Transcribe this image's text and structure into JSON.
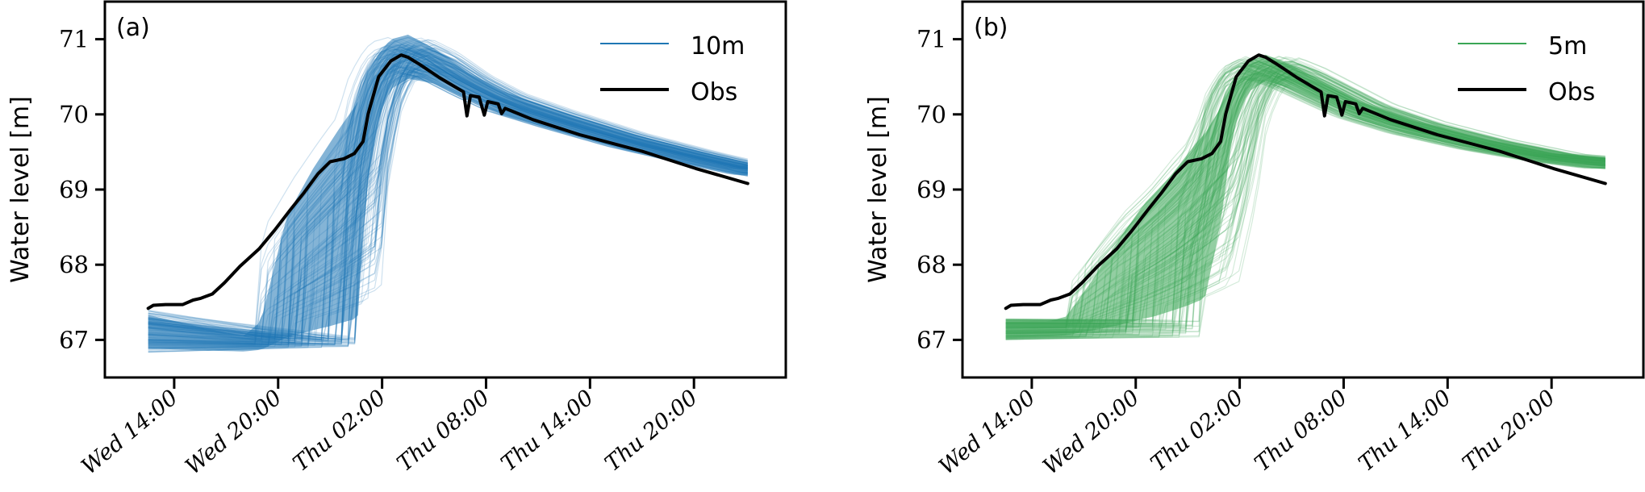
{
  "chart_data": [
    {
      "type": "line",
      "panel_label": "(a)",
      "ylabel": "Water level [m]",
      "xlabel": "",
      "ylim": [
        66.5,
        71.5
      ],
      "xlim_hours_from_wed_00": [
        10.0,
        49.3
      ],
      "yticks": [
        67,
        68,
        69,
        70,
        71
      ],
      "ytick_labels": [
        "67",
        "68",
        "69",
        "70",
        "71"
      ],
      "xticks_hours_from_wed_00": [
        14,
        20,
        26,
        32,
        38,
        44
      ],
      "xtick_labels": [
        "Wed 14:00",
        "Wed 20:00",
        "Thu 02:00",
        "Thu 08:00",
        "Thu 14:00",
        "Thu 20:00"
      ],
      "grid": false,
      "legend_position": "top-right",
      "legend": [
        {
          "name": "10m",
          "color": "#1f77b4"
        },
        {
          "name": "Obs",
          "color": "#000000"
        }
      ],
      "ensemble": {
        "name": "10m",
        "color": "#1f77b4",
        "member_count_approx": 1000,
        "description": "ensemble of simulated water level trajectories",
        "start_hour": 12.5,
        "end_hour": 47.1,
        "initial_range": [
          66.83,
          67.4
        ],
        "low_phase_end_range_hours": [
          18.7,
          24.8
        ],
        "low_phase_level_at_rise": [
          66.9,
          67.05
        ],
        "peak_range": [
          70.35,
          71.15
        ],
        "peak_hour_approx": 27.0,
        "end_range": [
          69.15,
          69.4
        ],
        "envelope_upper": {
          "x": [
            12.5,
            15,
            18,
            19,
            20.5,
            22,
            23.5,
            25,
            26.5,
            27.5,
            29,
            31,
            33,
            36,
            40,
            44,
            47.1
          ],
          "y": [
            67.4,
            67.25,
            67.08,
            67.3,
            68.9,
            69.6,
            70.2,
            70.75,
            71.1,
            71.15,
            70.95,
            70.6,
            70.35,
            70.1,
            69.8,
            69.55,
            69.38
          ]
        },
        "envelope_lower": {
          "x": [
            12.5,
            16,
            20,
            23,
            24.6,
            25,
            25.8,
            26.5,
            27.5,
            29,
            31,
            33,
            36,
            40,
            44,
            47.1
          ],
          "y": [
            66.83,
            66.82,
            66.82,
            66.87,
            66.92,
            68.6,
            69.85,
            70.25,
            70.4,
            70.35,
            70.15,
            69.95,
            69.75,
            69.5,
            69.3,
            69.15
          ]
        }
      },
      "series": [
        {
          "name": "Obs",
          "color": "#000000",
          "x": [
            12.5,
            12.8,
            13.5,
            14.5,
            15.1,
            15.5,
            16.2,
            16.9,
            17.8,
            18.9,
            19.8,
            20.7,
            21.5,
            22.3,
            23.0,
            23.8,
            24.4,
            24.9,
            25.2,
            25.8,
            26.5,
            27.1,
            27.5,
            28.2,
            29.3,
            30.4,
            30.7,
            30.9,
            31.1,
            31.6,
            31.9,
            32.1,
            32.7,
            32.9,
            33.1,
            34.7,
            37.4,
            41.0,
            44.1,
            47.1
          ],
          "y": [
            67.42,
            67.46,
            67.47,
            67.47,
            67.53,
            67.55,
            67.61,
            67.76,
            67.98,
            68.21,
            68.46,
            68.73,
            68.96,
            69.21,
            69.37,
            69.41,
            69.48,
            69.64,
            70.01,
            70.5,
            70.71,
            70.79,
            70.76,
            70.66,
            70.49,
            70.34,
            70.3,
            69.98,
            70.25,
            70.23,
            69.99,
            70.17,
            70.14,
            70.01,
            70.08,
            69.93,
            69.73,
            69.51,
            69.28,
            69.08
          ]
        }
      ]
    },
    {
      "type": "line",
      "panel_label": "(b)",
      "ylabel": "Water level [m]",
      "xlabel": "",
      "ylim": [
        66.5,
        71.5
      ],
      "xlim_hours_from_wed_00": [
        10.0,
        49.3
      ],
      "yticks": [
        67,
        68,
        69,
        70,
        71
      ],
      "ytick_labels": [
        "67",
        "68",
        "69",
        "70",
        "71"
      ],
      "xticks_hours_from_wed_00": [
        14,
        20,
        26,
        32,
        38,
        44
      ],
      "xtick_labels": [
        "Wed 14:00",
        "Wed 20:00",
        "Thu 02:00",
        "Thu 08:00",
        "Thu 14:00",
        "Thu 20:00"
      ],
      "grid": false,
      "legend_position": "top-right",
      "legend": [
        {
          "name": "5m",
          "color": "#3aa655"
        },
        {
          "name": "Obs",
          "color": "#000000"
        }
      ],
      "ensemble": {
        "name": "5m",
        "color": "#3aa655",
        "member_count_approx": 1000,
        "description": "ensemble of simulated water level trajectories",
        "start_hour": 12.5,
        "end_hour": 47.1,
        "initial_range": [
          67.0,
          67.28
        ],
        "low_phase_end_range_hours": [
          16.0,
          24.0
        ],
        "low_phase_level_at_rise": [
          67.03,
          67.27
        ],
        "peak_range": [
          70.4,
          70.85
        ],
        "peak_hour_approx": 27.0,
        "end_range": [
          69.25,
          69.45
        ],
        "envelope_upper": {
          "x": [
            12.5,
            15,
            16,
            17.5,
            19,
            20.5,
            22,
            23.5,
            25,
            26.5,
            27.5,
            29,
            31,
            33,
            36,
            40,
            44,
            47.1
          ],
          "y": [
            67.28,
            67.28,
            67.35,
            67.9,
            68.5,
            69.05,
            69.45,
            69.95,
            70.35,
            70.75,
            70.85,
            70.7,
            70.45,
            70.2,
            69.95,
            69.7,
            69.5,
            69.45
          ]
        },
        "envelope_lower": {
          "x": [
            12.5,
            16,
            19,
            21,
            23,
            24,
            25,
            25.6,
            26.5,
            27.5,
            29,
            31,
            33,
            36,
            40,
            44,
            47.1
          ],
          "y": [
            67.0,
            67.03,
            67.05,
            67.1,
            67.2,
            67.27,
            68.5,
            69.7,
            70.25,
            70.4,
            70.3,
            70.1,
            69.9,
            69.7,
            69.5,
            69.35,
            69.25
          ]
        }
      },
      "series": [
        {
          "name": "Obs",
          "color": "#000000",
          "x": [
            12.5,
            12.8,
            13.5,
            14.5,
            15.1,
            15.5,
            16.2,
            16.9,
            17.8,
            18.9,
            19.8,
            20.7,
            21.5,
            22.3,
            23.0,
            23.8,
            24.4,
            24.9,
            25.2,
            25.8,
            26.5,
            27.1,
            27.5,
            28.2,
            29.3,
            30.4,
            30.7,
            30.9,
            31.1,
            31.6,
            31.9,
            32.1,
            32.7,
            32.9,
            33.1,
            34.7,
            37.4,
            41.0,
            44.1,
            47.1
          ],
          "y": [
            67.42,
            67.46,
            67.47,
            67.47,
            67.53,
            67.55,
            67.61,
            67.76,
            67.98,
            68.21,
            68.46,
            68.73,
            68.96,
            69.21,
            69.37,
            69.41,
            69.48,
            69.64,
            70.01,
            70.5,
            70.71,
            70.79,
            70.76,
            70.66,
            70.49,
            70.34,
            70.3,
            69.98,
            70.25,
            70.23,
            69.99,
            70.17,
            70.14,
            70.01,
            70.08,
            69.93,
            69.73,
            69.51,
            69.28,
            69.08
          ]
        }
      ]
    }
  ]
}
